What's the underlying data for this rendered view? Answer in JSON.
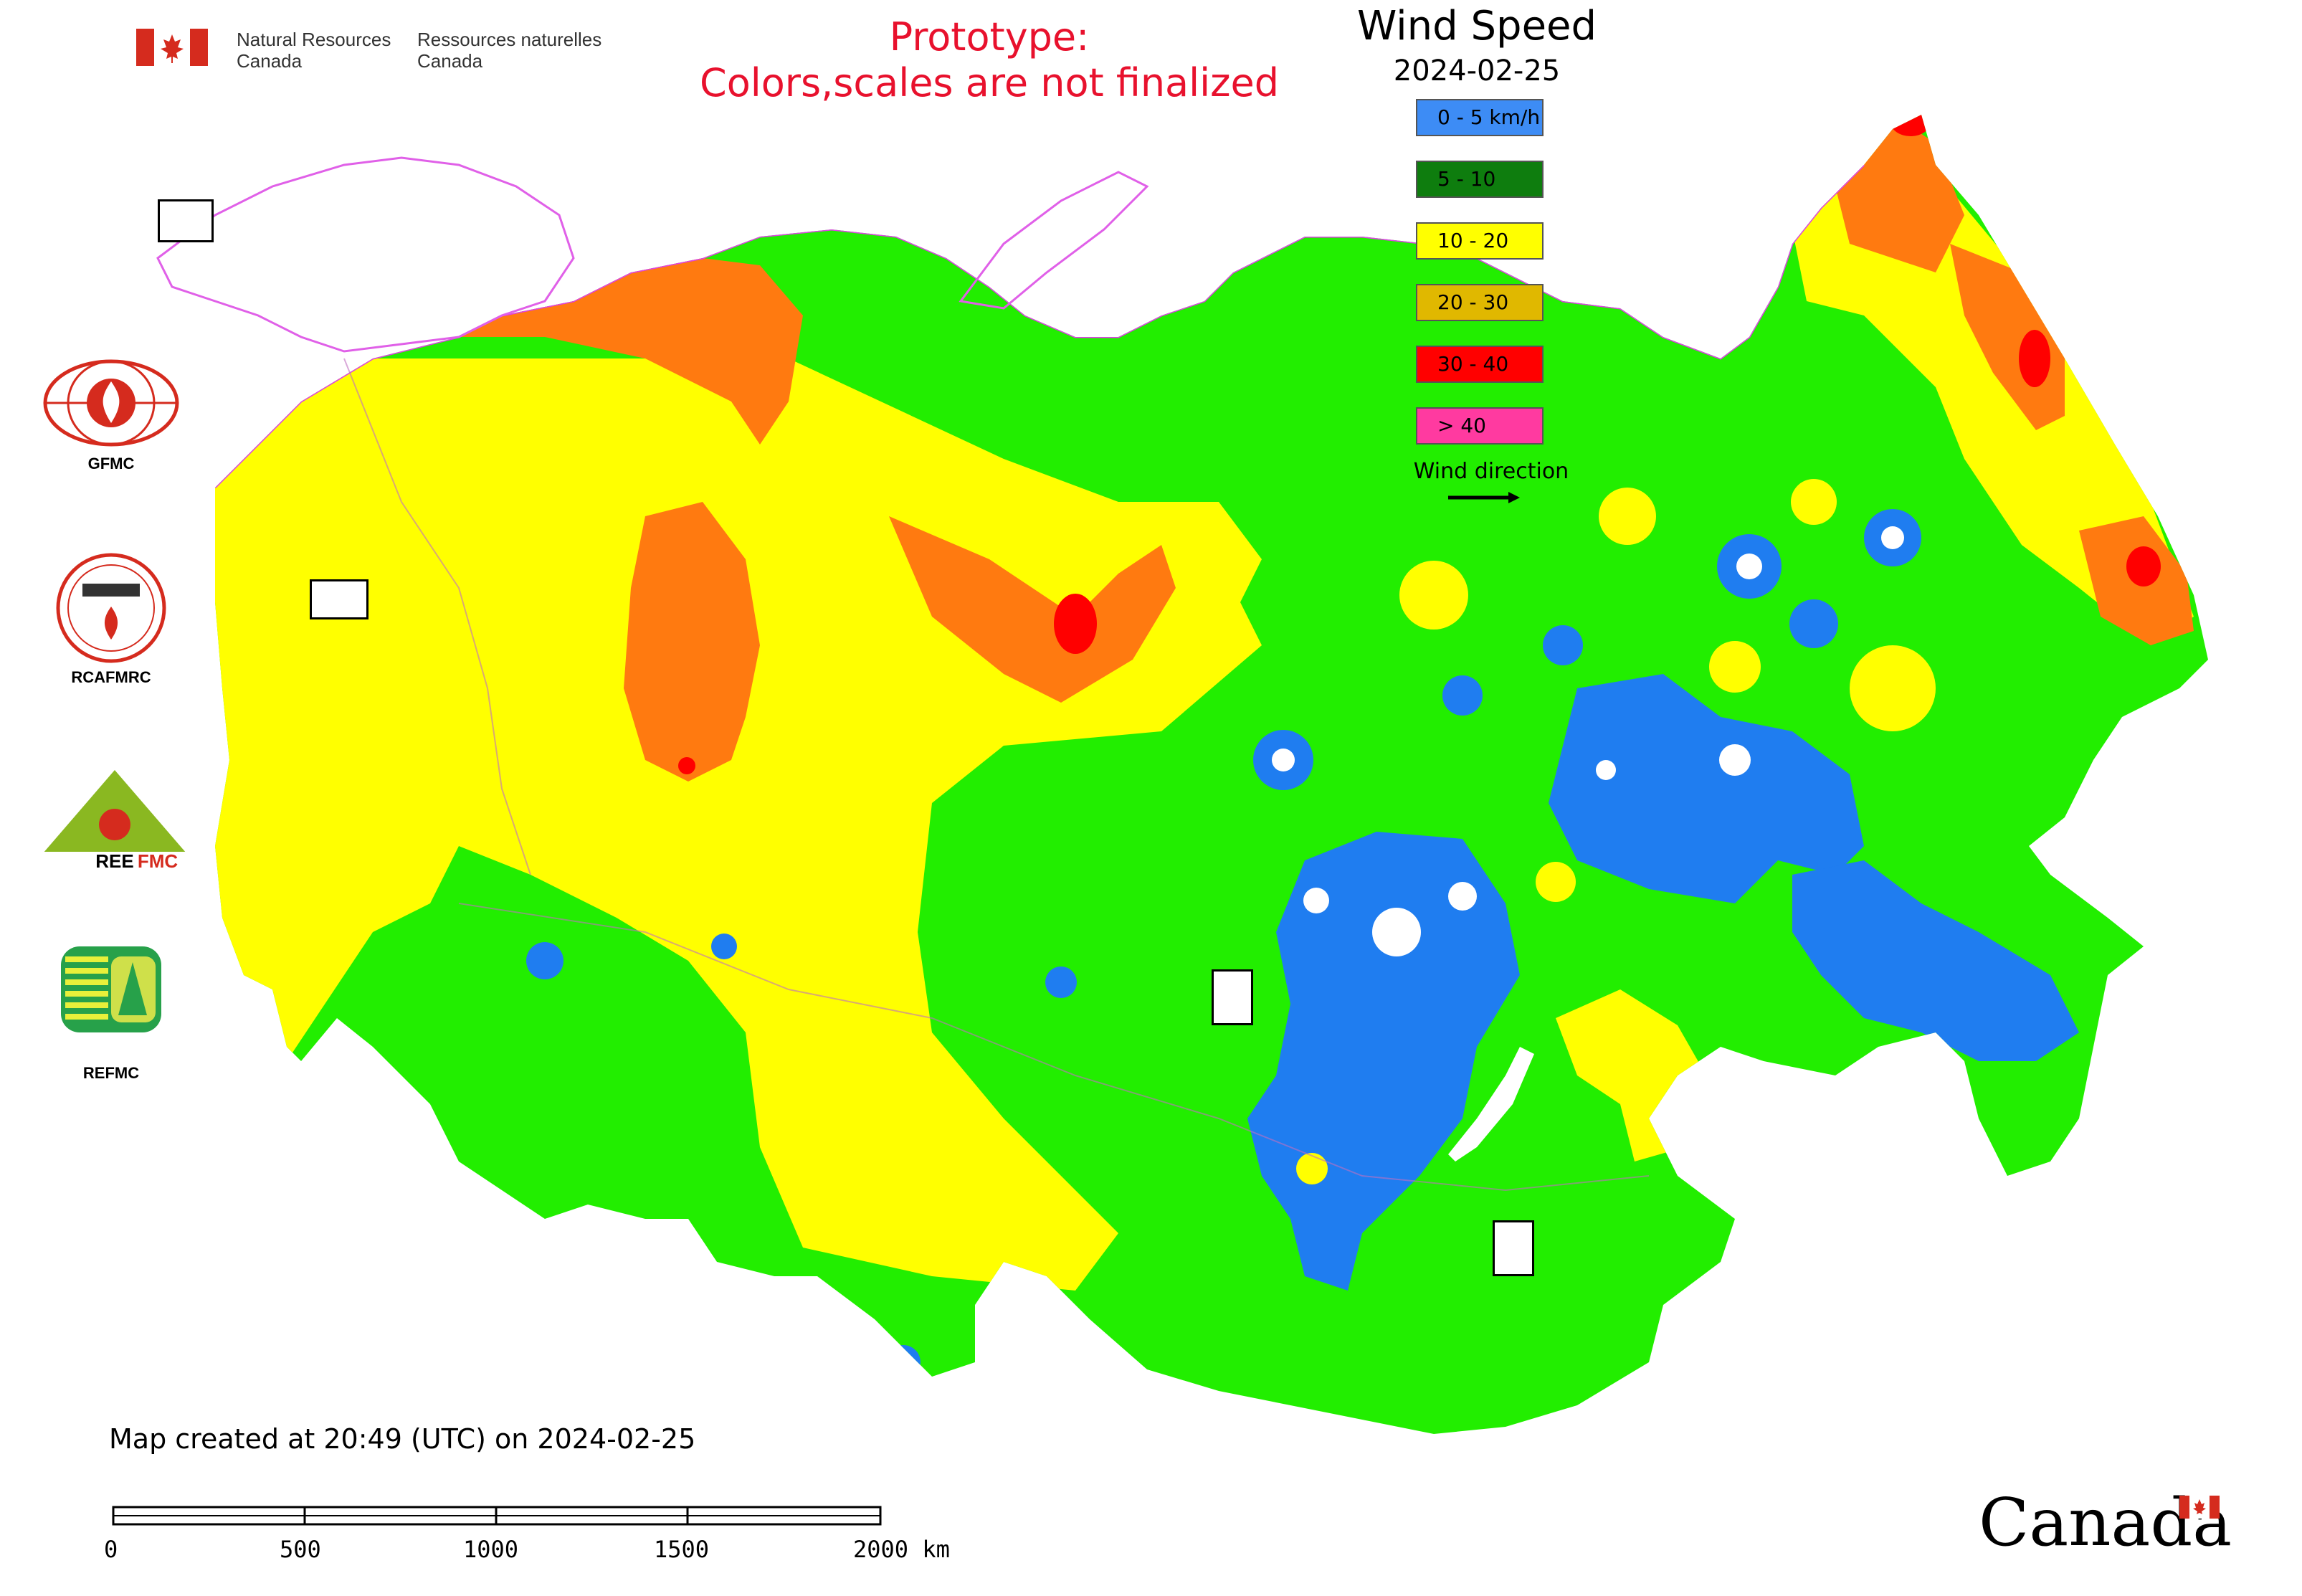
{
  "header": {
    "dept_en_line1": "Natural Resources",
    "dept_en_line2": "Canada",
    "dept_fr_line1": "Ressources naturelles",
    "dept_fr_line2": "Canada",
    "notice_line1": "Prototype:",
    "notice_line2": "Colors,scales are not finalized"
  },
  "legend": {
    "title": "Wind Speed",
    "date": "2024-02-25",
    "classes": [
      {
        "label": "0 - 5 km/h",
        "color": "#3d8cf5"
      },
      {
        "label": "5 - 10",
        "color": "#0e7d0e"
      },
      {
        "label": "10 - 20",
        "color": "#ffff00"
      },
      {
        "label": "20 - 30",
        "color": "#e0b800"
      },
      {
        "label": "30 - 40",
        "color": "#ff0000"
      },
      {
        "label": "> 40",
        "color": "#ff3aa0"
      }
    ],
    "wind_direction_label": "Wind direction"
  },
  "side_logos": [
    {
      "label": "GFMC",
      "icon": "gfmc-logo-icon"
    },
    {
      "label": "RCAFMRC",
      "icon": "rcafmrc-logo-icon"
    },
    {
      "label": "",
      "icon": "reefmc-logo-icon"
    },
    {
      "label": "REFMC",
      "icon": "refmc-logo-icon"
    }
  ],
  "map": {
    "zone_colors": {
      "blue": "#1f7df0",
      "green": "#22ee00",
      "yellow": "#ffff00",
      "orange": "#ff7a10",
      "red": "#ff0000",
      "border": "#e040e8"
    }
  },
  "footer": {
    "created_text": "Map created at 20:49 (UTC) on 2024-02-25",
    "scale_labels": [
      "0",
      "500",
      "1000",
      "1500",
      "2000 km"
    ],
    "wordmark": "Canada"
  }
}
